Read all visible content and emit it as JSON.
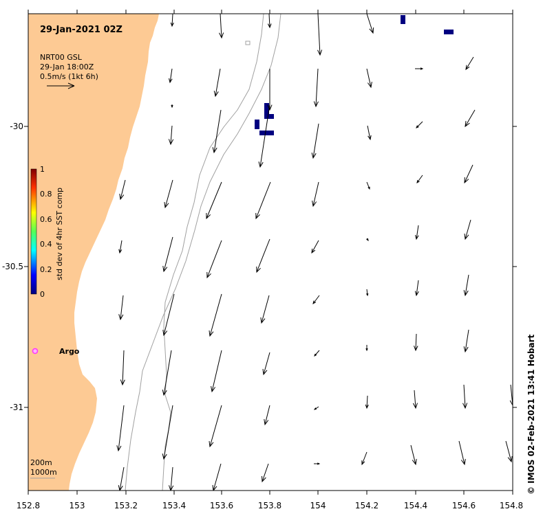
{
  "title": "29-Jan-2021 02Z",
  "product": {
    "line1": "NRT00 GSL",
    "line2": "29-Jan 18:00Z",
    "line3": "0.5m/s (1kt 6h)"
  },
  "colorbar": {
    "label": "std dev of 4hr SST comp",
    "ticks": [
      "1",
      "0.8",
      "0.6",
      "0.4",
      "0.2",
      "0"
    ]
  },
  "xaxis_ticks": [
    "152.8",
    "153",
    "153.2",
    "153.4",
    "153.6",
    "153.8",
    "154",
    "154.2",
    "154.4",
    "154.6",
    "154.8"
  ],
  "yaxis_ticks": [
    "-30",
    "-30.5",
    "-31"
  ],
  "contours": {
    "label_200": "200m",
    "label_1000": "1000m"
  },
  "float": {
    "label": "Argo",
    "color": "#ff33ff"
  },
  "credit": "© IMOS 02-Feb-2021 13:41 Hobart",
  "colors": {
    "land": "#fdca94",
    "sst_patch": "#000080",
    "contour": "#a0a0a0"
  }
}
